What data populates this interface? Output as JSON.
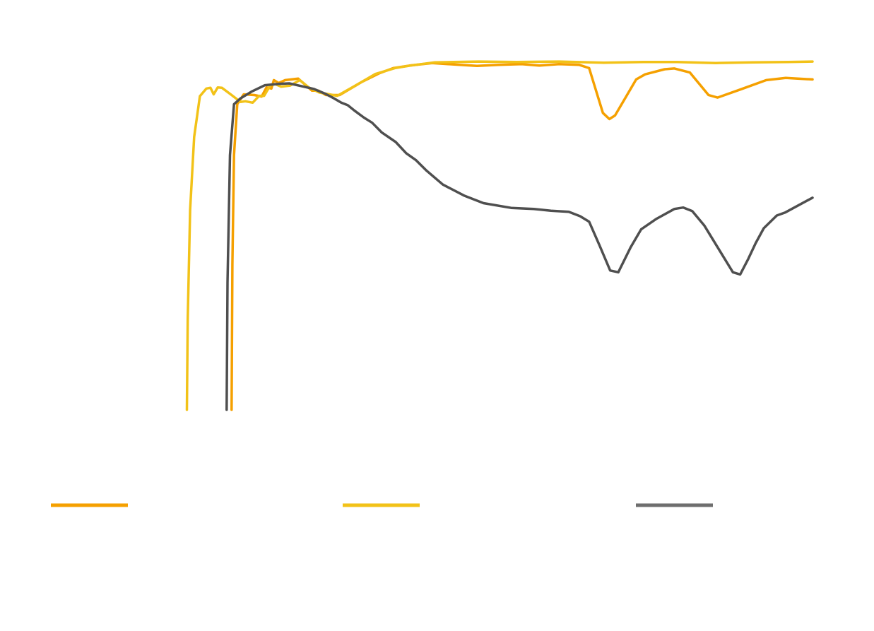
{
  "chart_data": {
    "type": "line",
    "title": "",
    "xlabel": "",
    "ylabel": "",
    "xlim": [
      0,
      100
    ],
    "ylim": [
      0,
      100
    ],
    "grid": false,
    "legend": "bottom",
    "series": [
      {
        "color": "#F5A000",
        "points": [
          [
            28.5,
            0
          ],
          [
            28.6,
            40
          ],
          [
            28.8,
            70
          ],
          [
            29.2,
            84
          ],
          [
            30,
            86.7
          ],
          [
            31.3,
            86.5
          ],
          [
            32.2,
            86.1
          ],
          [
            32.8,
            88.6
          ],
          [
            33.4,
            88.3
          ],
          [
            33.7,
            90.6
          ],
          [
            34.3,
            89.8
          ],
          [
            35.1,
            90.6
          ],
          [
            36.7,
            91
          ],
          [
            38.4,
            87.7
          ],
          [
            39.2,
            87.7
          ],
          [
            40.1,
            86.5
          ],
          [
            41.8,
            86.5
          ],
          [
            44.6,
            90.2
          ],
          [
            46.7,
            92.5
          ],
          [
            48.4,
            93.9
          ],
          [
            50.4,
            94.6
          ],
          [
            53.2,
            95.3
          ],
          [
            55.9,
            94.9
          ],
          [
            58.7,
            94.5
          ],
          [
            61.4,
            94.8
          ],
          [
            64.2,
            95
          ],
          [
            66.4,
            94.6
          ],
          [
            68.8,
            95
          ],
          [
            71.3,
            94.8
          ],
          [
            72.5,
            93.9
          ],
          [
            74.2,
            81.6
          ],
          [
            75,
            79.9
          ],
          [
            75.7,
            80.9
          ],
          [
            78.3,
            90.8
          ],
          [
            79.4,
            92.2
          ],
          [
            81.8,
            93.6
          ],
          [
            83,
            93.8
          ],
          [
            84.9,
            92.7
          ],
          [
            87.2,
            86.5
          ],
          [
            88.3,
            85.8
          ],
          [
            91.2,
            88.1
          ],
          [
            94.3,
            90.6
          ],
          [
            96.7,
            91.2
          ],
          [
            100,
            90.8
          ]
        ]
      },
      {
        "color": "#F2C218",
        "points": [
          [
            23,
            0
          ],
          [
            23.1,
            25
          ],
          [
            23.4,
            55
          ],
          [
            23.9,
            75
          ],
          [
            24.6,
            86.2
          ],
          [
            25.4,
            88.3
          ],
          [
            25.9,
            88.5
          ],
          [
            26.3,
            86.7
          ],
          [
            26.8,
            88.6
          ],
          [
            27.3,
            88.5
          ],
          [
            28.5,
            86.5
          ],
          [
            29.6,
            84.6
          ],
          [
            30.2,
            84.8
          ],
          [
            31.1,
            84.4
          ],
          [
            31.9,
            86.3
          ],
          [
            32.5,
            86.3
          ],
          [
            33.3,
            89.3
          ],
          [
            33.9,
            89.5
          ],
          [
            34.6,
            88.8
          ],
          [
            35.7,
            89.1
          ],
          [
            36.9,
            90.6
          ],
          [
            38,
            88.6
          ],
          [
            39.3,
            87.2
          ],
          [
            41.5,
            86.3
          ],
          [
            43.5,
            88.8
          ],
          [
            46.2,
            92.3
          ],
          [
            48.6,
            93.9
          ],
          [
            50.5,
            94.6
          ],
          [
            53.5,
            95.5
          ],
          [
            58.9,
            95.7
          ],
          [
            63.6,
            95.6
          ],
          [
            68.8,
            95.7
          ],
          [
            74.3,
            95.4
          ],
          [
            79.2,
            95.6
          ],
          [
            83.3,
            95.6
          ],
          [
            88.1,
            95.3
          ],
          [
            92.7,
            95.5
          ],
          [
            97,
            95.6
          ],
          [
            100,
            95.7
          ]
        ]
      },
      {
        "color": "#4F4F4F",
        "points": [
          [
            27.9,
            0
          ],
          [
            28,
            35
          ],
          [
            28.3,
            70
          ],
          [
            28.8,
            84
          ],
          [
            29.6,
            85.6
          ],
          [
            31,
            87.5
          ],
          [
            32.6,
            89.2
          ],
          [
            34.4,
            89.6
          ],
          [
            35.6,
            89.7
          ],
          [
            37.2,
            88.9
          ],
          [
            38.6,
            88.2
          ],
          [
            40,
            86.9
          ],
          [
            41.1,
            85.6
          ],
          [
            42,
            84.4
          ],
          [
            42.8,
            83.7
          ],
          [
            43.7,
            82.1
          ],
          [
            44.8,
            80.3
          ],
          [
            45.8,
            78.9
          ],
          [
            47,
            76.2
          ],
          [
            48.7,
            73.6
          ],
          [
            50,
            70.5
          ],
          [
            51.2,
            68.6
          ],
          [
            52.5,
            65.7
          ],
          [
            54.5,
            61.9
          ],
          [
            57.1,
            58.9
          ],
          [
            59.5,
            56.8
          ],
          [
            62.9,
            55.5
          ],
          [
            65.7,
            55.2
          ],
          [
            67.8,
            54.7
          ],
          [
            70,
            54.4
          ],
          [
            71.4,
            53.2
          ],
          [
            72.5,
            51.7
          ],
          [
            73.8,
            45.1
          ],
          [
            75.1,
            38.3
          ],
          [
            76.1,
            37.8
          ],
          [
            77.6,
            44.6
          ],
          [
            78.9,
            49.6
          ],
          [
            80.8,
            52.5
          ],
          [
            83,
            55.2
          ],
          [
            84.1,
            55.6
          ],
          [
            85.2,
            54.6
          ],
          [
            86.7,
            50.6
          ],
          [
            90.2,
            37.8
          ],
          [
            91.1,
            37.2
          ],
          [
            92.1,
            41.5
          ],
          [
            93,
            45.8
          ],
          [
            94,
            49.9
          ],
          [
            95.6,
            53.4
          ],
          [
            96.6,
            54.2
          ],
          [
            100,
            58.3
          ]
        ]
      }
    ]
  }
}
